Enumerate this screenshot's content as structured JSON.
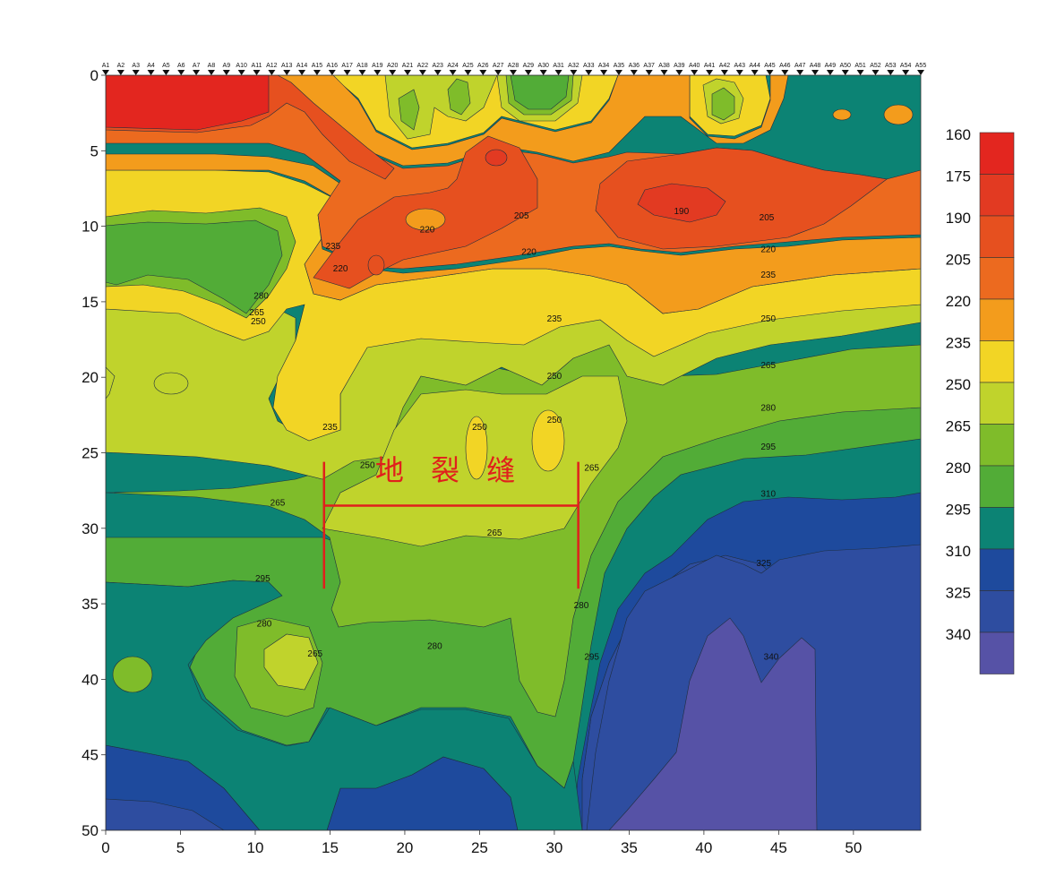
{
  "chart_data": {
    "type": "heatmap",
    "subtype": "filled-contour",
    "title": "",
    "xlabel": "",
    "ylabel": "",
    "xlim": [
      0,
      54.5
    ],
    "ylim": [
      0,
      50
    ],
    "y_inverted": true,
    "x_ticks": [
      "0",
      "5",
      "10",
      "15",
      "20",
      "25",
      "30",
      "35",
      "40",
      "45",
      "50"
    ],
    "y_ticks": [
      "0",
      "5",
      "10",
      "15",
      "20",
      "25",
      "30",
      "35",
      "40",
      "45",
      "50"
    ],
    "stations": [
      "A1",
      "A2",
      "A3",
      "A4",
      "A5",
      "A6",
      "A7",
      "A8",
      "A9",
      "A10",
      "A11",
      "A12",
      "A13",
      "A14",
      "A15",
      "A16",
      "A17",
      "A18",
      "A19",
      "A20",
      "A21",
      "A22",
      "A23",
      "A24",
      "A25",
      "A26",
      "A27",
      "A28",
      "A29",
      "A30",
      "A31",
      "A32",
      "A33",
      "A34",
      "A35",
      "A36",
      "A37",
      "A38",
      "A39",
      "A40",
      "A41",
      "A42",
      "A43",
      "A44",
      "A45",
      "A46",
      "A47",
      "A48",
      "A49",
      "A50",
      "A51",
      "A52",
      "A53",
      "A54",
      "A55"
    ],
    "colorbar": {
      "levels": [
        "160",
        "175",
        "190",
        "205",
        "220",
        "235",
        "250",
        "265",
        "280",
        "295",
        "310",
        "325",
        "340"
      ],
      "colors": [
        "#e3261f",
        "#e23a22",
        "#e6501f",
        "#ec6a1f",
        "#f39c1c",
        "#f2d525",
        "#c0d32c",
        "#7fbc2a",
        "#52ac37",
        "#0c8374",
        "#1e4a9d",
        "#2e4da0",
        "#5652a6"
      ]
    },
    "contour_labels": [
      {
        "value": "190",
        "x": 38.5,
        "y": 9.2
      },
      {
        "value": "205",
        "x": 27.8,
        "y": 9.5
      },
      {
        "value": "205",
        "x": 44.2,
        "y": 9.6
      },
      {
        "value": "220",
        "x": 21.5,
        "y": 10.4
      },
      {
        "value": "220",
        "x": 28.3,
        "y": 11.9
      },
      {
        "value": "220",
        "x": 44.3,
        "y": 11.7
      },
      {
        "value": "220",
        "x": 15.7,
        "y": 13.0
      },
      {
        "value": "235",
        "x": 15.2,
        "y": 11.5
      },
      {
        "value": "235",
        "x": 44.3,
        "y": 13.4
      },
      {
        "value": "235",
        "x": 30.0,
        "y": 16.3
      },
      {
        "value": "235",
        "x": 15.0,
        "y": 23.5
      },
      {
        "value": "250",
        "x": 44.3,
        "y": 16.3
      },
      {
        "value": "250",
        "x": 30.0,
        "y": 20.1
      },
      {
        "value": "250",
        "x": 25.0,
        "y": 23.5
      },
      {
        "value": "250",
        "x": 30.0,
        "y": 23.0
      },
      {
        "value": "250",
        "x": 17.5,
        "y": 26.0
      },
      {
        "value": "250",
        "x": 10.2,
        "y": 16.5
      },
      {
        "value": "265",
        "x": 10.1,
        "y": 15.9
      },
      {
        "value": "265",
        "x": 44.3,
        "y": 19.4
      },
      {
        "value": "265",
        "x": 32.5,
        "y": 26.2
      },
      {
        "value": "265",
        "x": 11.5,
        "y": 28.5
      },
      {
        "value": "265",
        "x": 26.0,
        "y": 30.5
      },
      {
        "value": "265",
        "x": 14.0,
        "y": 38.5
      },
      {
        "value": "280",
        "x": 10.4,
        "y": 14.8
      },
      {
        "value": "280",
        "x": 44.3,
        "y": 22.2
      },
      {
        "value": "280",
        "x": 31.8,
        "y": 35.3
      },
      {
        "value": "280",
        "x": 10.6,
        "y": 36.5
      },
      {
        "value": "280",
        "x": 22.0,
        "y": 38.0
      },
      {
        "value": "295",
        "x": 44.3,
        "y": 24.8
      },
      {
        "value": "295",
        "x": 10.5,
        "y": 33.5
      },
      {
        "value": "295",
        "x": 32.5,
        "y": 38.7
      },
      {
        "value": "310",
        "x": 44.3,
        "y": 27.9
      },
      {
        "value": "325",
        "x": 44.0,
        "y": 32.5
      },
      {
        "value": "340",
        "x": 44.5,
        "y": 38.7
      }
    ],
    "annotations": [
      {
        "text": "地 裂 缝",
        "x": 23.0,
        "y": 26.8
      },
      {
        "type": "bracket",
        "x_start": 14.6,
        "x_end": 31.6,
        "y_top": 25.6,
        "y_mid": 28.5,
        "y_bottom": 34.0
      }
    ]
  }
}
